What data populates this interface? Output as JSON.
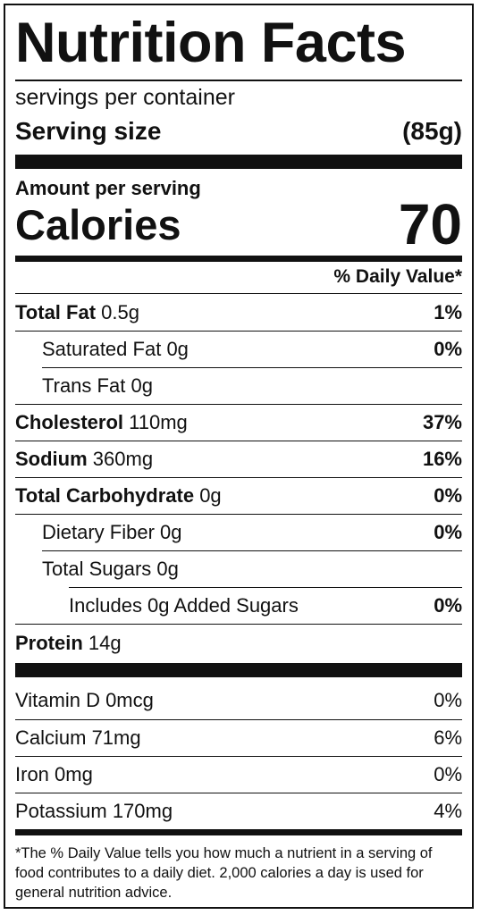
{
  "title": "Nutrition Facts",
  "servings": "servings per container",
  "serving_size": {
    "label": "Serving size",
    "value": "(85g)"
  },
  "amount_per_serving": "Amount per serving",
  "calories": {
    "label": "Calories",
    "value": "70"
  },
  "daily_value_header": "% Daily Value*",
  "nutrients": [
    {
      "name": "Total Fat",
      "amount": "0.5g",
      "dv": "1%"
    },
    {
      "name": "Saturated Fat",
      "amount": "0g",
      "dv": "0%"
    },
    {
      "name": "Trans Fat",
      "amount": "0g",
      "dv": ""
    },
    {
      "name": "Cholesterol",
      "amount": "110mg",
      "dv": "37%"
    },
    {
      "name": "Sodium",
      "amount": "360mg",
      "dv": "16%"
    },
    {
      "name": "Total Carbohydrate",
      "amount": "0g",
      "dv": "0%"
    },
    {
      "name": "Dietary Fiber",
      "amount": "0g",
      "dv": "0%"
    },
    {
      "name": "Total Sugars",
      "amount": "0g",
      "dv": ""
    },
    {
      "name": "Includes 0g Added Sugars",
      "amount": "",
      "dv": "0%"
    },
    {
      "name": "Protein",
      "amount": "14g",
      "dv": ""
    }
  ],
  "vitamins": [
    {
      "name": "Vitamin D 0mcg",
      "dv": "0%"
    },
    {
      "name": "Calcium 71mg",
      "dv": "6%"
    },
    {
      "name": "Iron 0mg",
      "dv": "0%"
    },
    {
      "name": "Potassium 170mg",
      "dv": "4%"
    }
  ],
  "footnote": "*The % Daily Value tells you how much a nutrient in a serving of food contributes to a daily diet. 2,000 calories a day is used for general nutrition advice."
}
